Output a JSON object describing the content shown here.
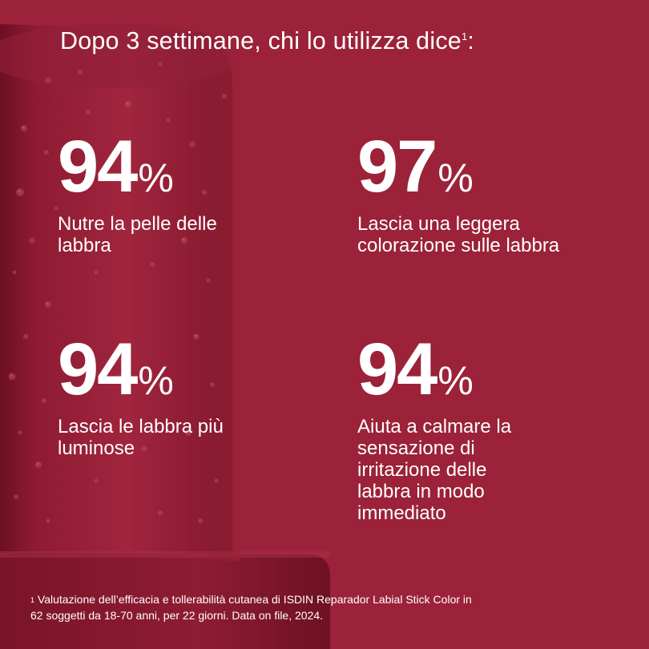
{
  "headline": {
    "text": "Dopo 3 settimane, chi lo utilizza dice",
    "sup": "1",
    "suffix": ":"
  },
  "stats": [
    {
      "value": "94",
      "unit": "%",
      "line1": "Nutre la pelle delle",
      "line2": "labbra"
    },
    {
      "value": "97",
      "unit": "%",
      "line1": "Lascia una leggera",
      "line2": "colorazione sulle labbra"
    },
    {
      "value": "94",
      "unit": "%",
      "line1": "Lascia le labbra più",
      "line2": "luminose"
    },
    {
      "value": "94",
      "unit": "%",
      "line1": "Aiuta a calmare la",
      "line2": "sensazione di",
      "line3": "irritazione delle",
      "line4": "labbra in modo",
      "line5": "immediato"
    }
  ],
  "footnote": {
    "sup": "1",
    "line1": "Valutazione dell’efficacia e tollerabilità cutanea di ISDIN Reparador Labial Stick Color in",
    "line2": "62 soggetti da 18-70 anni, per 22 giorni. Data on file, 2024."
  },
  "colors": {
    "background": "#9b2238",
    "product_dark": "#7a1428",
    "text": "#ffffff"
  }
}
